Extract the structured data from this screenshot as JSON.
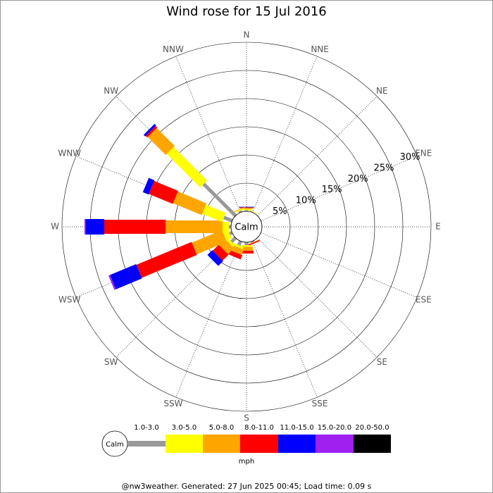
{
  "chart_data": {
    "type": "windrose",
    "title": "Wind rose for 15 Jul 2016",
    "directions": [
      "N",
      "NNE",
      "NE",
      "ENE",
      "E",
      "ESE",
      "SE",
      "SSE",
      "S",
      "SSW",
      "SW",
      "WSW",
      "W",
      "WNW",
      "NW",
      "NNW"
    ],
    "center_label": "Calm",
    "rlim": [
      0,
      30
    ],
    "rticks": [
      {
        "value": 5,
        "label": "5%"
      },
      {
        "value": 10,
        "label": "10%"
      },
      {
        "value": 15,
        "label": "15%"
      },
      {
        "value": 20,
        "label": "20%"
      },
      {
        "value": 25,
        "label": "25%"
      },
      {
        "value": 30,
        "label": "30%"
      }
    ],
    "series": [
      {
        "name": "1.0-3.0",
        "color": "#999999",
        "values": [
          0.2,
          0.1,
          0,
          0,
          0,
          0,
          0,
          0.2,
          0.5,
          0.8,
          1.0,
          0.5,
          0.4,
          1.6,
          8.0,
          0.3
        ]
      },
      {
        "name": "3.0-5.0",
        "color": "#ffff00",
        "values": [
          0.2,
          0.1,
          0,
          0,
          0,
          0,
          0,
          0,
          0.3,
          0.4,
          0.5,
          1.0,
          1.1,
          3.8,
          8.4,
          0.2
        ]
      },
      {
        "name": "5.0-8.0",
        "color": "#ffa500",
        "values": [
          0.2,
          0,
          0,
          0,
          0,
          0,
          0,
          0.1,
          0.7,
          1.0,
          1.5,
          5.8,
          10.1,
          5.5,
          4.5,
          0.1
        ]
      },
      {
        "name": "8.0-11.0",
        "color": "#ff0000",
        "values": [
          0.1,
          0,
          0,
          0,
          0,
          0,
          0,
          0.2,
          0.5,
          0.8,
          1.5,
          10.6,
          10.9,
          4.6,
          0.4,
          0
        ]
      },
      {
        "name": "11.0-15.0",
        "color": "#0000ff",
        "values": [
          0.1,
          0,
          0,
          0,
          0,
          0,
          0,
          0,
          0,
          0,
          1.2,
          5.0,
          3.3,
          1.1,
          0.4,
          0
        ]
      },
      {
        "name": "15.0-20.0",
        "color": "#a020f0",
        "values": [
          0,
          0,
          0,
          0,
          0,
          0,
          0,
          0,
          0,
          0,
          0,
          0.3,
          0.2,
          0,
          0,
          0
        ]
      },
      {
        "name": "20.0-50.0",
        "color": "#000000",
        "values": [
          0,
          0,
          0,
          0,
          0,
          0,
          0,
          0,
          0,
          0,
          0,
          0,
          0,
          0,
          0,
          0
        ]
      }
    ],
    "legend_unit": "mph",
    "footer": "@nw3weather. Generated: 27 Jun 2025 00:45; Load time: 0.09 s"
  }
}
